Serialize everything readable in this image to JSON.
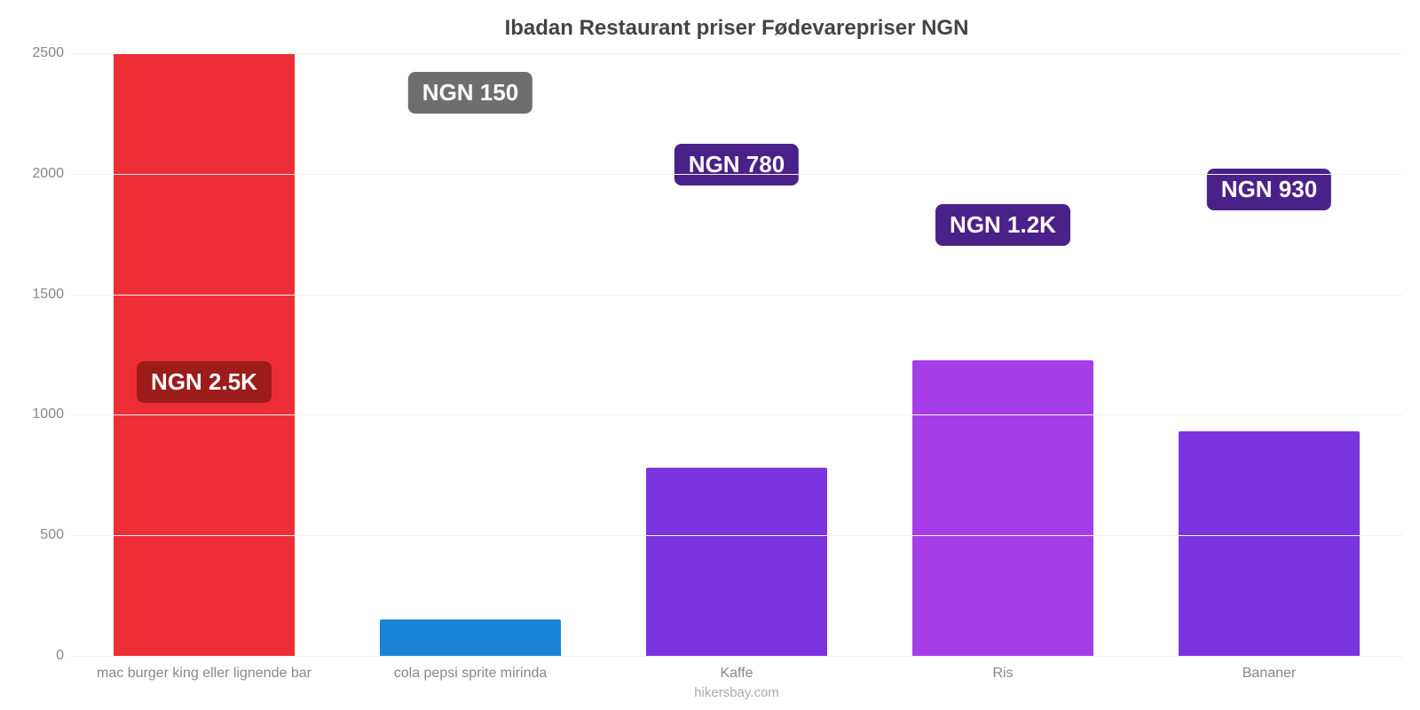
{
  "chart": {
    "type": "bar",
    "title": "Ibadan Restaurant priser Fødevarepriser NGN",
    "title_fontsize": 24,
    "title_color": "#444444",
    "background_color": "#ffffff",
    "grid_color": "#f0f0f0",
    "axis_color": "#999999",
    "label_color": "#888888",
    "label_fontsize": 16,
    "value_label_fontsize": 26,
    "value_label_color": "#ffffff",
    "bar_width": 0.68,
    "ylim": [
      0,
      2500
    ],
    "ytick_step": 500,
    "yticks": [
      {
        "v": 0,
        "label": "0"
      },
      {
        "v": 500,
        "label": "500"
      },
      {
        "v": 1000,
        "label": "1000"
      },
      {
        "v": 1500,
        "label": "1500"
      },
      {
        "v": 2000,
        "label": "2000"
      },
      {
        "v": 2500,
        "label": "2500"
      }
    ],
    "bars": [
      {
        "category": "mac burger king eller lignende bar",
        "value": 2500,
        "display": "NGN 2.5K",
        "bar_color": "#ee2e36",
        "badge_color": "#9c1b1b",
        "badge_offset_pct": 42
      },
      {
        "category": "cola pepsi sprite mirinda",
        "value": 150,
        "display": "NGN 150",
        "bar_color": "#1c84d6",
        "badge_color": "#6e6e6e",
        "badge_offset_pct": 90
      },
      {
        "category": "Kaffe",
        "value": 780,
        "display": "NGN 780",
        "bar_color": "#7a34e0",
        "badge_color": "#4a2189",
        "badge_offset_pct": 78
      },
      {
        "category": "Ris",
        "value": 1225,
        "display": "NGN 1.2K",
        "bar_color": "#a53ee8",
        "badge_color": "#4a2189",
        "badge_offset_pct": 68
      },
      {
        "category": "Bananer",
        "value": 930,
        "display": "NGN 930",
        "bar_color": "#7a34e0",
        "badge_color": "#4a2189",
        "badge_offset_pct": 74
      }
    ],
    "attribution": "hikersbay.com",
    "attribution_color": "#aaaaaa",
    "attribution_fontsize": 15
  }
}
